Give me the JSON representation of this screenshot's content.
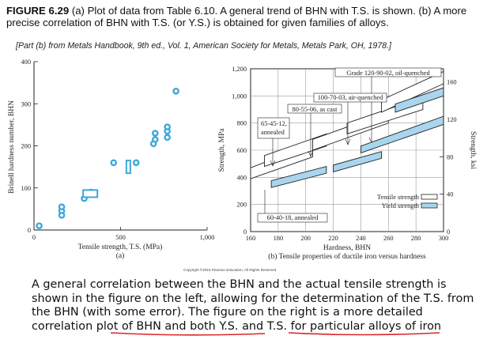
{
  "caption": {
    "figure_label": "FIGURE 6.29",
    "text": " (a) Plot of data from Table 6.10. A general trend of BHN with T.S. is shown. (b) A more precise correlation of BHN with T.S. (or Y.S.) is obtained for given families of alloys.",
    "source": "[Part (b) from Metals Handbook, 9th ed., Vol. 1, American Society for Metals, Metals Park, OH, 1978.]"
  },
  "colors": {
    "marker": "#3da7db",
    "band_yield": "#a9d6ee",
    "band_tensile": "#ffffff",
    "axis": "#222222"
  },
  "chart_data": [
    {
      "type": "scatter",
      "panel_label": "(a)",
      "xlabel": "Tensile strength, T.S. (MPa)",
      "ylabel": "Brinell hardness number, BHN",
      "xlim": [
        0,
        1000
      ],
      "ylim": [
        0,
        400
      ],
      "x_ticks": [
        0,
        500,
        "1,000"
      ],
      "y_ticks": [
        0,
        100,
        200,
        300,
        400
      ],
      "points": [
        {
          "x": 30,
          "y": 10
        },
        {
          "x": 160,
          "y": 45
        },
        {
          "x": 160,
          "y": 55
        },
        {
          "x": 160,
          "y": 35
        },
        {
          "x": 290,
          "y": 75
        },
        {
          "x": 330,
          "y": 90
        },
        {
          "x": 335,
          "y": 88
        },
        {
          "x": 460,
          "y": 160
        },
        {
          "x": 590,
          "y": 160
        },
        {
          "x": 690,
          "y": 205
        },
        {
          "x": 700,
          "y": 230
        },
        {
          "x": 700,
          "y": 215
        },
        {
          "x": 770,
          "y": 220
        },
        {
          "x": 770,
          "y": 235
        },
        {
          "x": 770,
          "y": 245
        },
        {
          "x": 820,
          "y": 330
        }
      ],
      "range_markers": [
        {
          "x": 325,
          "y_low": 78,
          "y_high": 95,
          "kind": "horizontal-bar"
        },
        {
          "x": 545,
          "y_low": 135,
          "y_high": 165,
          "kind": "vertical-bar"
        }
      ]
    },
    {
      "type": "area",
      "panel_label": "(b) Tensile properties of ductile iron versus hardness",
      "xlabel": "Hardness, BHN",
      "ylabel_left": "Strength, MPa",
      "ylabel_right": "Strength, ksi",
      "xlim": [
        160,
        300
      ],
      "ylim_left": [
        0,
        1200
      ],
      "ylim_right": [
        0,
        174
      ],
      "x_ticks": [
        160,
        180,
        200,
        220,
        240,
        260,
        280,
        300
      ],
      "y_ticks_left": [
        0,
        200,
        400,
        600,
        800,
        "1,000",
        "1,200"
      ],
      "y_ticks_right": [
        0,
        40,
        80,
        120,
        160
      ],
      "legend": [
        "Tensile strength",
        "Yield strength"
      ],
      "legend_position": "lower-right",
      "series": [
        {
          "name": "Tensile strength",
          "bands": [
            {
              "grade": "60-40-18, annealed",
              "x": [
                160,
                205
              ],
              "low": [
                390,
                550
              ],
              "high": [
                470,
                650
              ]
            },
            {
              "grade": "65-45-12, annealed",
              "x": [
                170,
                215
              ],
              "low": [
                480,
                630
              ],
              "high": [
                560,
                720
              ]
            },
            {
              "grade": "80-55-06, as cast",
              "x": [
                205,
                260
              ],
              "low": [
                600,
                800
              ],
              "high": [
                680,
                880
              ]
            },
            {
              "grade": "100-70-03, air-quenched",
              "x": [
                230,
                285
              ],
              "low": [
                720,
                900
              ],
              "high": [
                800,
                990
              ]
            },
            {
              "grade": "Grade 120-90-02, oil-quenched",
              "x": [
                255,
                300
              ],
              "low": [
                880,
                1090
              ],
              "high": [
                970,
                1180
              ]
            }
          ]
        },
        {
          "name": "Yield strength",
          "bands": [
            {
              "grade": "60-40-18, annealed",
              "x": [
                175,
                215
              ],
              "low": [
                325,
                430
              ],
              "high": [
                375,
                480
              ]
            },
            {
              "grade": "80-55-06, as cast",
              "x": [
                220,
                255
              ],
              "low": [
                440,
                540
              ],
              "high": [
                490,
                590
              ]
            },
            {
              "grade": "100-70-03, air-quenched",
              "x": [
                240,
                300
              ],
              "low": [
                580,
                790
              ],
              "high": [
                630,
                850
              ]
            },
            {
              "grade": "Grade 120-90-02, oil-quenched",
              "x": [
                265,
                300
              ],
              "low": [
                880,
                1000
              ],
              "high": [
                940,
                1060
              ]
            }
          ]
        }
      ],
      "annotations": [
        "Grade 120-90-02, oil-quenched",
        "100-70-03, air-quenched",
        "80-55-06, as cast",
        "65-45-12,",
        "annealed",
        "60-40-18, annealed"
      ]
    }
  ],
  "copyright": "Copyright ©2015 Pearson Education, All Rights Reserved",
  "description": "A general correlation between the BHN and the actual tensile strength is shown in the figure on the left, allowing for the determination of the T.S. from the BHN (with some error). The figure on the right is a more detailed correlation plot of BHN and both Y.S. and T.S. for particular alloys of iron"
}
